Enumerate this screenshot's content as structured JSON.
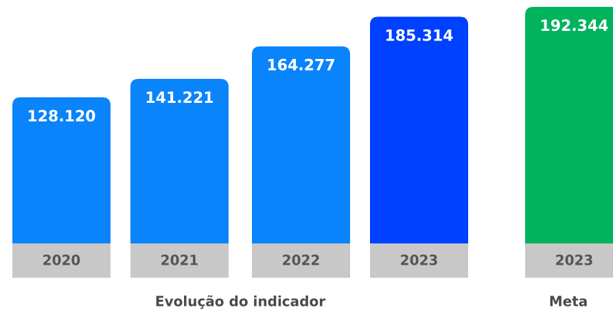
{
  "chart_data": {
    "type": "bar",
    "groups": [
      {
        "name": "Evolução do indicador",
        "categories": [
          "2020",
          "2021",
          "2022",
          "2023"
        ],
        "values": [
          128120,
          141221,
          164277,
          185314
        ],
        "value_labels": [
          "128.120",
          "141.221",
          "164.277",
          "185.314"
        ],
        "colors": [
          "#0a84fb",
          "#0a84fb",
          "#0a84fb",
          "#0040ff"
        ]
      },
      {
        "name": "Meta",
        "categories": [
          "2023"
        ],
        "values": [
          192344
        ],
        "value_labels": [
          "192.344"
        ],
        "colors": [
          "#00b35c"
        ]
      }
    ]
  }
}
